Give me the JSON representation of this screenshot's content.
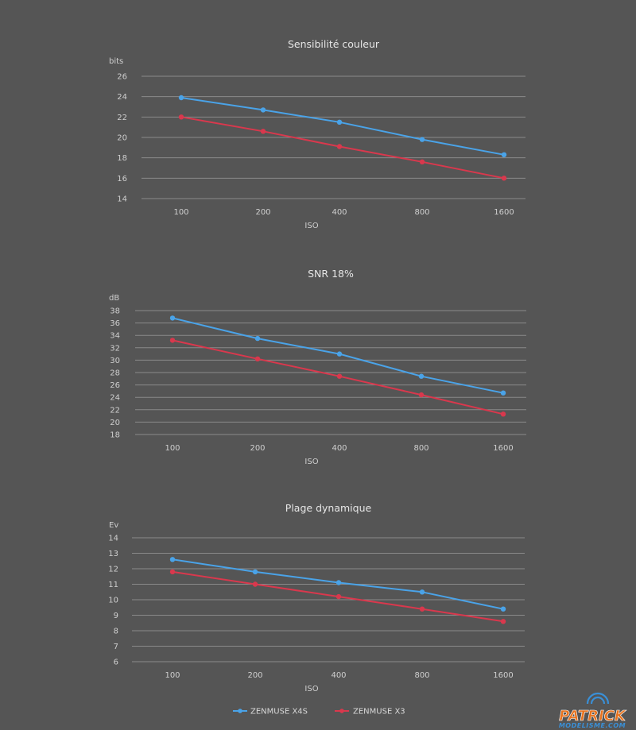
{
  "chart_data": [
    {
      "type": "line",
      "title": "Sensibilité couleur",
      "ylabel": "bits",
      "xlabel": "ISO",
      "categories": [
        "100",
        "200",
        "400",
        "800",
        "1600"
      ],
      "ylim": [
        14,
        26
      ],
      "yticks": [
        14,
        16,
        18,
        20,
        22,
        24,
        26
      ],
      "grid": true,
      "series": [
        {
          "name": "ZENMUSE X4S",
          "values": [
            23.9,
            22.7,
            21.5,
            19.8,
            18.3
          ]
        },
        {
          "name": "ZENMUSE X3",
          "values": [
            22.0,
            20.6,
            19.1,
            17.6,
            16.0
          ]
        }
      ]
    },
    {
      "type": "line",
      "title": "SNR 18%",
      "ylabel": "dB",
      "xlabel": "ISO",
      "categories": [
        "100",
        "200",
        "400",
        "800",
        "1600"
      ],
      "ylim": [
        18,
        38
      ],
      "yticks": [
        18,
        20,
        22,
        24,
        26,
        28,
        30,
        32,
        34,
        36,
        38
      ],
      "grid": true,
      "series": [
        {
          "name": "ZENMUSE X4S",
          "values": [
            36.8,
            33.5,
            31.0,
            27.4,
            24.7
          ]
        },
        {
          "name": "ZENMUSE X3",
          "values": [
            33.2,
            30.2,
            27.4,
            24.4,
            21.3
          ]
        }
      ]
    },
    {
      "type": "line",
      "title": "Plage dynamique",
      "ylabel": "Ev",
      "xlabel": "ISO",
      "categories": [
        "100",
        "200",
        "400",
        "800",
        "1600"
      ],
      "ylim": [
        6,
        14
      ],
      "yticks": [
        6,
        7,
        8,
        9,
        10,
        11,
        12,
        13,
        14
      ],
      "grid": true,
      "series": [
        {
          "name": "ZENMUSE X4S",
          "values": [
            12.6,
            11.8,
            11.1,
            10.5,
            9.4
          ]
        },
        {
          "name": "ZENMUSE X3",
          "values": [
            11.8,
            11.0,
            10.2,
            9.4,
            8.6
          ]
        }
      ]
    }
  ],
  "legend": {
    "position": "bottom-center",
    "items": [
      {
        "label": "ZENMUSE X4S",
        "color": "#4aa3e8"
      },
      {
        "label": "ZENMUSE X3",
        "color": "#d9384d"
      }
    ]
  },
  "logo": {
    "line1": "PATRICK",
    "line2": "MODELISME.COM"
  },
  "colors": {
    "background": "#555555",
    "grid": "#8a8a8a",
    "series_blue": "#4aa3e8",
    "series_red": "#d9384d"
  }
}
